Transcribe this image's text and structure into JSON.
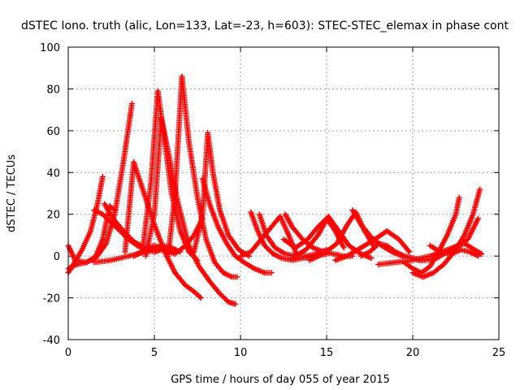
{
  "chart_data": {
    "type": "scatter",
    "title": "dSTEC Iono. truth (alic, Lon=133, Lat=-23, h=603): STEC-STEC_elemax in phase cont",
    "xlabel": "GPS time / hours of day 055 of year 2015",
    "ylabel": "dSTEC  / TECUs",
    "xlim": [
      0,
      25
    ],
    "ylim": [
      -40,
      100
    ],
    "xticks": [
      0,
      5,
      10,
      15,
      20,
      25
    ],
    "yticks": [
      -40,
      -20,
      0,
      20,
      40,
      60,
      80,
      100
    ],
    "grid": true,
    "marker": "+",
    "color": "#ff0000",
    "series": [
      {
        "x": [
          0.0,
          0.3,
          0.8,
          1.3,
          1.7,
          2.0
        ],
        "y": [
          -8,
          -4,
          3,
          12,
          25,
          38
        ]
      },
      {
        "x": [
          0.0,
          0.4,
          1.0,
          1.6,
          2.2,
          2.7,
          3.2,
          3.7
        ],
        "y": [
          5,
          -2,
          -3,
          -1,
          6,
          20,
          45,
          73
        ]
      },
      {
        "x": [
          0.0,
          0.5,
          1.1,
          1.6,
          2.0,
          2.4,
          2.7
        ],
        "y": [
          -6,
          -4,
          -3,
          0,
          8,
          24,
          22
        ]
      },
      {
        "x": [
          1.5,
          2.0,
          2.5,
          3.0,
          3.5,
          4.0,
          4.5,
          5.0,
          5.4
        ],
        "y": [
          22,
          20,
          16,
          12,
          8,
          5,
          3,
          2,
          3
        ]
      },
      {
        "x": [
          2.1,
          2.6,
          3.2,
          3.8,
          4.4,
          5.0,
          5.6,
          6.2,
          6.8,
          7.3,
          7.8
        ],
        "y": [
          25,
          18,
          12,
          7,
          4,
          5,
          3,
          1,
          5,
          10,
          18
        ]
      },
      {
        "x": [
          1.5,
          2.5,
          3.5,
          4.5,
          5.5,
          6.0,
          6.5
        ],
        "y": [
          -3,
          -2,
          0,
          2,
          5,
          4,
          2
        ]
      },
      {
        "x": [
          3.3,
          3.8,
          4.4,
          5.0,
          5.6,
          6.2,
          6.8,
          7.3,
          7.7
        ],
        "y": [
          2,
          45,
          30,
          15,
          2,
          -8,
          -14,
          -17,
          -20
        ]
      },
      {
        "x": [
          3.8,
          4.3,
          4.8,
          5.2,
          5.6,
          6.0,
          6.5,
          7.0,
          7.5
        ],
        "y": [
          0,
          2,
          35,
          79,
          55,
          30,
          12,
          2,
          -2
        ]
      },
      {
        "x": [
          4.5,
          5.0,
          5.4,
          5.8,
          6.3,
          7.0,
          7.6,
          8.2,
          8.8,
          9.3,
          9.7
        ],
        "y": [
          0,
          20,
          66,
          50,
          28,
          5,
          -5,
          -12,
          -18,
          -22,
          -23
        ]
      },
      {
        "x": [
          5.8,
          6.2,
          6.6,
          7.0,
          7.5,
          8.0,
          8.5,
          9.0,
          9.5,
          9.8
        ],
        "y": [
          0,
          30,
          86,
          55,
          28,
          8,
          -3,
          -8,
          -10,
          -10
        ]
      },
      {
        "x": [
          7.3,
          7.8,
          8.1,
          8.4,
          8.8,
          9.3,
          9.9,
          10.5
        ],
        "y": [
          2,
          20,
          59,
          40,
          22,
          10,
          3,
          0
        ]
      },
      {
        "x": [
          7.8,
          8.2,
          8.7,
          9.2,
          9.7,
          10.2,
          10.8,
          11.4,
          11.8
        ],
        "y": [
          37,
          25,
          14,
          6,
          0,
          -3,
          -6,
          -8,
          -8
        ]
      },
      {
        "x": [
          10.0,
          10.6,
          11.2,
          11.8,
          12.3,
          12.8,
          13.3
        ],
        "y": [
          0,
          2,
          8,
          14,
          19,
          10,
          0
        ]
      },
      {
        "x": [
          10.6,
          11.0,
          11.4,
          11.9,
          12.4,
          13.0,
          13.6,
          14.3,
          15.0
        ],
        "y": [
          21,
          12,
          5,
          1,
          -1,
          -2,
          -1,
          0,
          1
        ]
      },
      {
        "x": [
          11.1,
          11.5,
          12.0,
          12.6,
          13.2,
          13.8,
          14.4,
          15.0
        ],
        "y": [
          20,
          10,
          4,
          1,
          0,
          0,
          1,
          3
        ]
      },
      {
        "x": [
          12.6,
          13.0,
          13.6,
          14.2,
          14.8,
          15.4,
          16.0,
          16.5
        ],
        "y": [
          20,
          14,
          8,
          4,
          2,
          1,
          0,
          0
        ]
      },
      {
        "x": [
          12.5,
          13.2,
          13.9,
          14.5,
          15.0,
          15.5,
          16.0
        ],
        "y": [
          8,
          4,
          8,
          14,
          18,
          12,
          4
        ]
      },
      {
        "x": [
          13.0,
          13.8,
          14.5,
          15.1,
          15.7,
          16.3,
          17.0,
          17.6
        ],
        "y": [
          -1,
          3,
          10,
          19,
          12,
          5,
          1,
          -1
        ]
      },
      {
        "x": [
          14.0,
          14.8,
          15.6,
          16.2,
          16.7,
          17.2,
          17.8
        ],
        "y": [
          -2,
          1,
          6,
          15,
          21,
          12,
          4
        ]
      },
      {
        "x": [
          16.5,
          17.0,
          17.6,
          18.2,
          18.8,
          19.4,
          20.0,
          20.6
        ],
        "y": [
          22,
          15,
          9,
          5,
          2,
          0,
          -1,
          -2
        ]
      },
      {
        "x": [
          15.5,
          16.2,
          17.0,
          17.8,
          18.5,
          19.2,
          19.8
        ],
        "y": [
          -2,
          0,
          4,
          8,
          12,
          8,
          2
        ]
      },
      {
        "x": [
          17.0,
          17.5,
          18.0,
          18.5,
          19.0,
          19.5,
          20.0,
          20.5
        ],
        "y": [
          0,
          2,
          6,
          5,
          2,
          0,
          -1,
          -2
        ]
      },
      {
        "x": [
          19.5,
          20.0,
          20.5,
          21.0,
          21.5,
          22.0,
          22.5,
          22.7
        ],
        "y": [
          -3,
          -6,
          -8,
          -5,
          2,
          10,
          20,
          28
        ]
      },
      {
        "x": [
          20.0,
          20.6,
          21.2,
          21.8,
          22.4,
          23.0,
          23.5,
          23.9
        ],
        "y": [
          -8,
          -10,
          -8,
          -4,
          2,
          10,
          20,
          32
        ]
      },
      {
        "x": [
          20.3,
          20.8,
          21.4,
          22.0,
          22.6,
          23.2,
          23.8
        ],
        "y": [
          -2,
          -2,
          -1,
          2,
          5,
          8,
          18
        ]
      },
      {
        "x": [
          21.0,
          21.6,
          22.2,
          22.8,
          23.3,
          23.8
        ],
        "y": [
          5,
          2,
          1,
          3,
          2,
          0
        ]
      },
      {
        "x": [
          18.0,
          19.0,
          20.0,
          21.0,
          22.0,
          23.0,
          24.0
        ],
        "y": [
          -4,
          -3,
          -2,
          0,
          3,
          6,
          1
        ]
      }
    ]
  }
}
